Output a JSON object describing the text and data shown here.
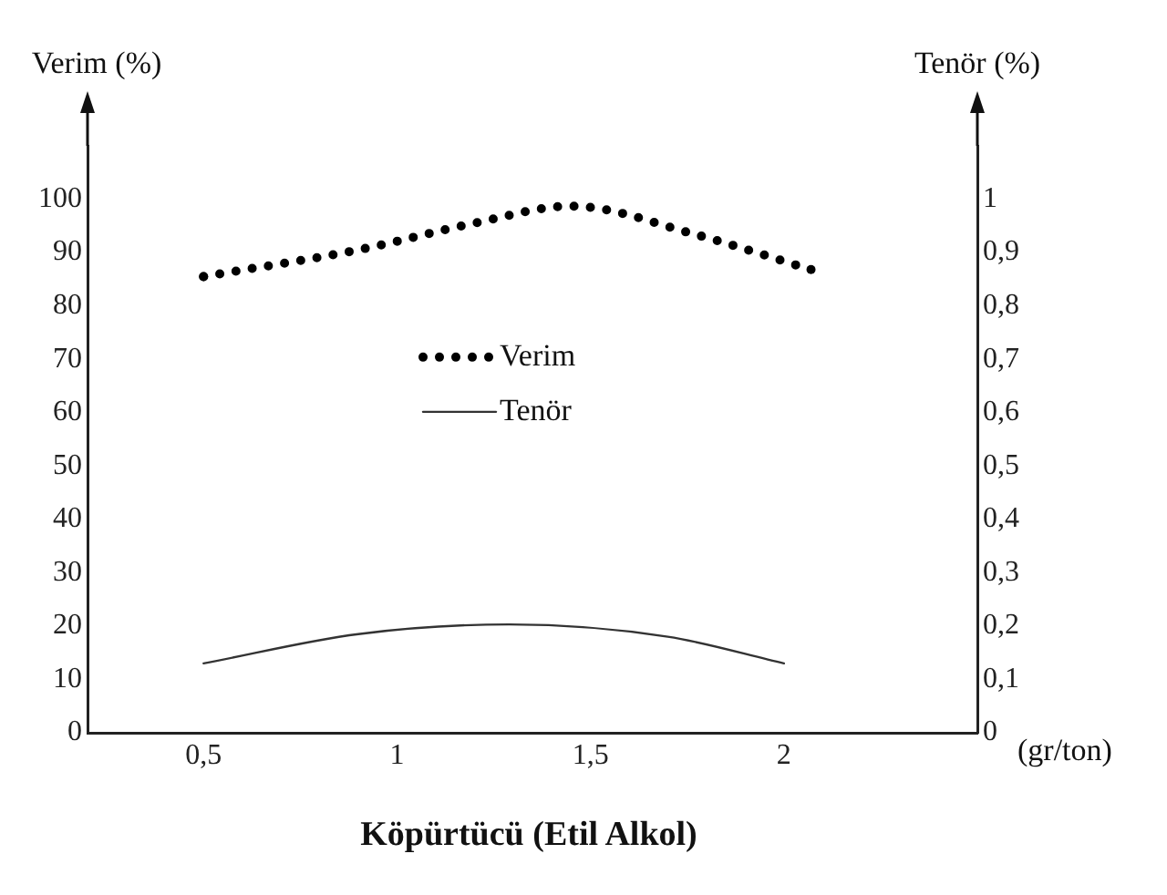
{
  "chart_data": {
    "type": "line",
    "title": "Köpürtücü (Etil Alkol)",
    "xlabel": "(gr/ton)",
    "ylabel": "Verim (%)",
    "y2label": "Tenör (%)",
    "series": [
      {
        "name": "Verim",
        "color": "#000000",
        "line_style": "dotted",
        "x": [
          0.5,
          0.9,
          1.2,
          1.45,
          1.77,
          2.07
        ],
        "values": [
          85.5,
          90.5,
          95.5,
          98.7,
          93.4,
          86.8
        ]
      },
      {
        "name": "Tenör",
        "color": "#333333",
        "line_style": "solid",
        "axis": "y2",
        "x": [
          0.5,
          0.9,
          1.29,
          1.7,
          2.0
        ],
        "values": [
          0.13,
          0.185,
          0.203,
          0.18,
          0.13
        ]
      }
    ],
    "xlim": [
      0.2,
      2.5
    ],
    "xticks": [
      {
        "value": 0.5,
        "label": "0,5"
      },
      1,
      {
        "value": 1.5,
        "label": "1,5"
      },
      2
    ],
    "ylim": [
      0,
      110
    ],
    "yticks": [
      0,
      10,
      20,
      30,
      40,
      50,
      60,
      70,
      80,
      90,
      100
    ],
    "y2lim": [
      0,
      1.1
    ],
    "y2ticks": [
      0,
      {
        "value": 0.1,
        "label": "0,1"
      },
      {
        "value": 0.2,
        "label": "0,2"
      },
      {
        "value": 0.3,
        "label": "0,3"
      },
      {
        "value": 0.4,
        "label": "0,4"
      },
      {
        "value": 0.5,
        "label": "0,5"
      },
      {
        "value": 0.6,
        "label": "0,6"
      },
      {
        "value": 0.7,
        "label": "0,7"
      },
      {
        "value": 0.8,
        "label": "0,8"
      },
      {
        "value": 0.9,
        "label": "0,9"
      },
      1
    ],
    "grid": false,
    "legend": "center",
    "marker": "none"
  }
}
